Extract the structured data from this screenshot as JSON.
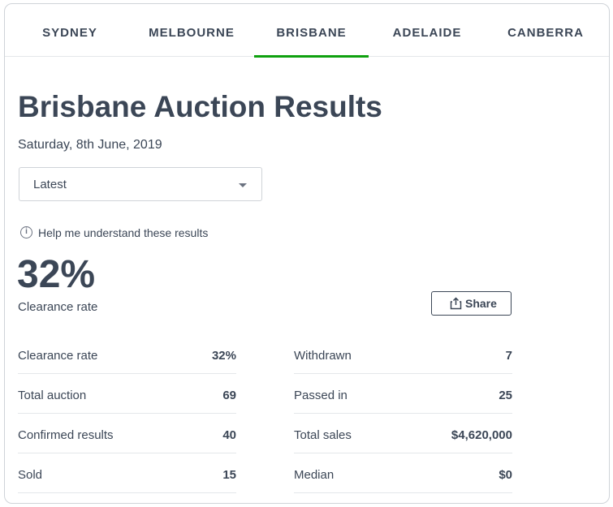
{
  "tabs": [
    {
      "label": "SYDNEY"
    },
    {
      "label": "MELBOURNE"
    },
    {
      "label": "BRISBANE",
      "active": true
    },
    {
      "label": "ADELAIDE"
    },
    {
      "label": "CANBERRA"
    }
  ],
  "header": {
    "title": "Brisbane Auction Results",
    "date": "Saturday, 8th June, 2019"
  },
  "filter": {
    "selected": "Latest"
  },
  "help": {
    "label": "Help me understand these results"
  },
  "summary": {
    "rate": "32%",
    "rate_label": "Clearance rate"
  },
  "share": {
    "label": "Share"
  },
  "stats_left": [
    {
      "label": "Clearance rate",
      "value": "32%"
    },
    {
      "label": "Total auction",
      "value": "69"
    },
    {
      "label": "Confirmed results",
      "value": "40"
    },
    {
      "label": "Sold",
      "value": "15"
    }
  ],
  "stats_right": [
    {
      "label": "Withdrawn",
      "value": "7"
    },
    {
      "label": "Passed in",
      "value": "25"
    },
    {
      "label": "Total sales",
      "value": "$4,620,000"
    },
    {
      "label": "Median",
      "value": "$0"
    }
  ],
  "colors": {
    "accent": "#0ea10e",
    "text": "#3b4656",
    "border": "#cfd3d8"
  },
  "icons": {
    "help": "info-circle-icon",
    "share": "share-icon",
    "dropdown": "caret-down-icon"
  }
}
